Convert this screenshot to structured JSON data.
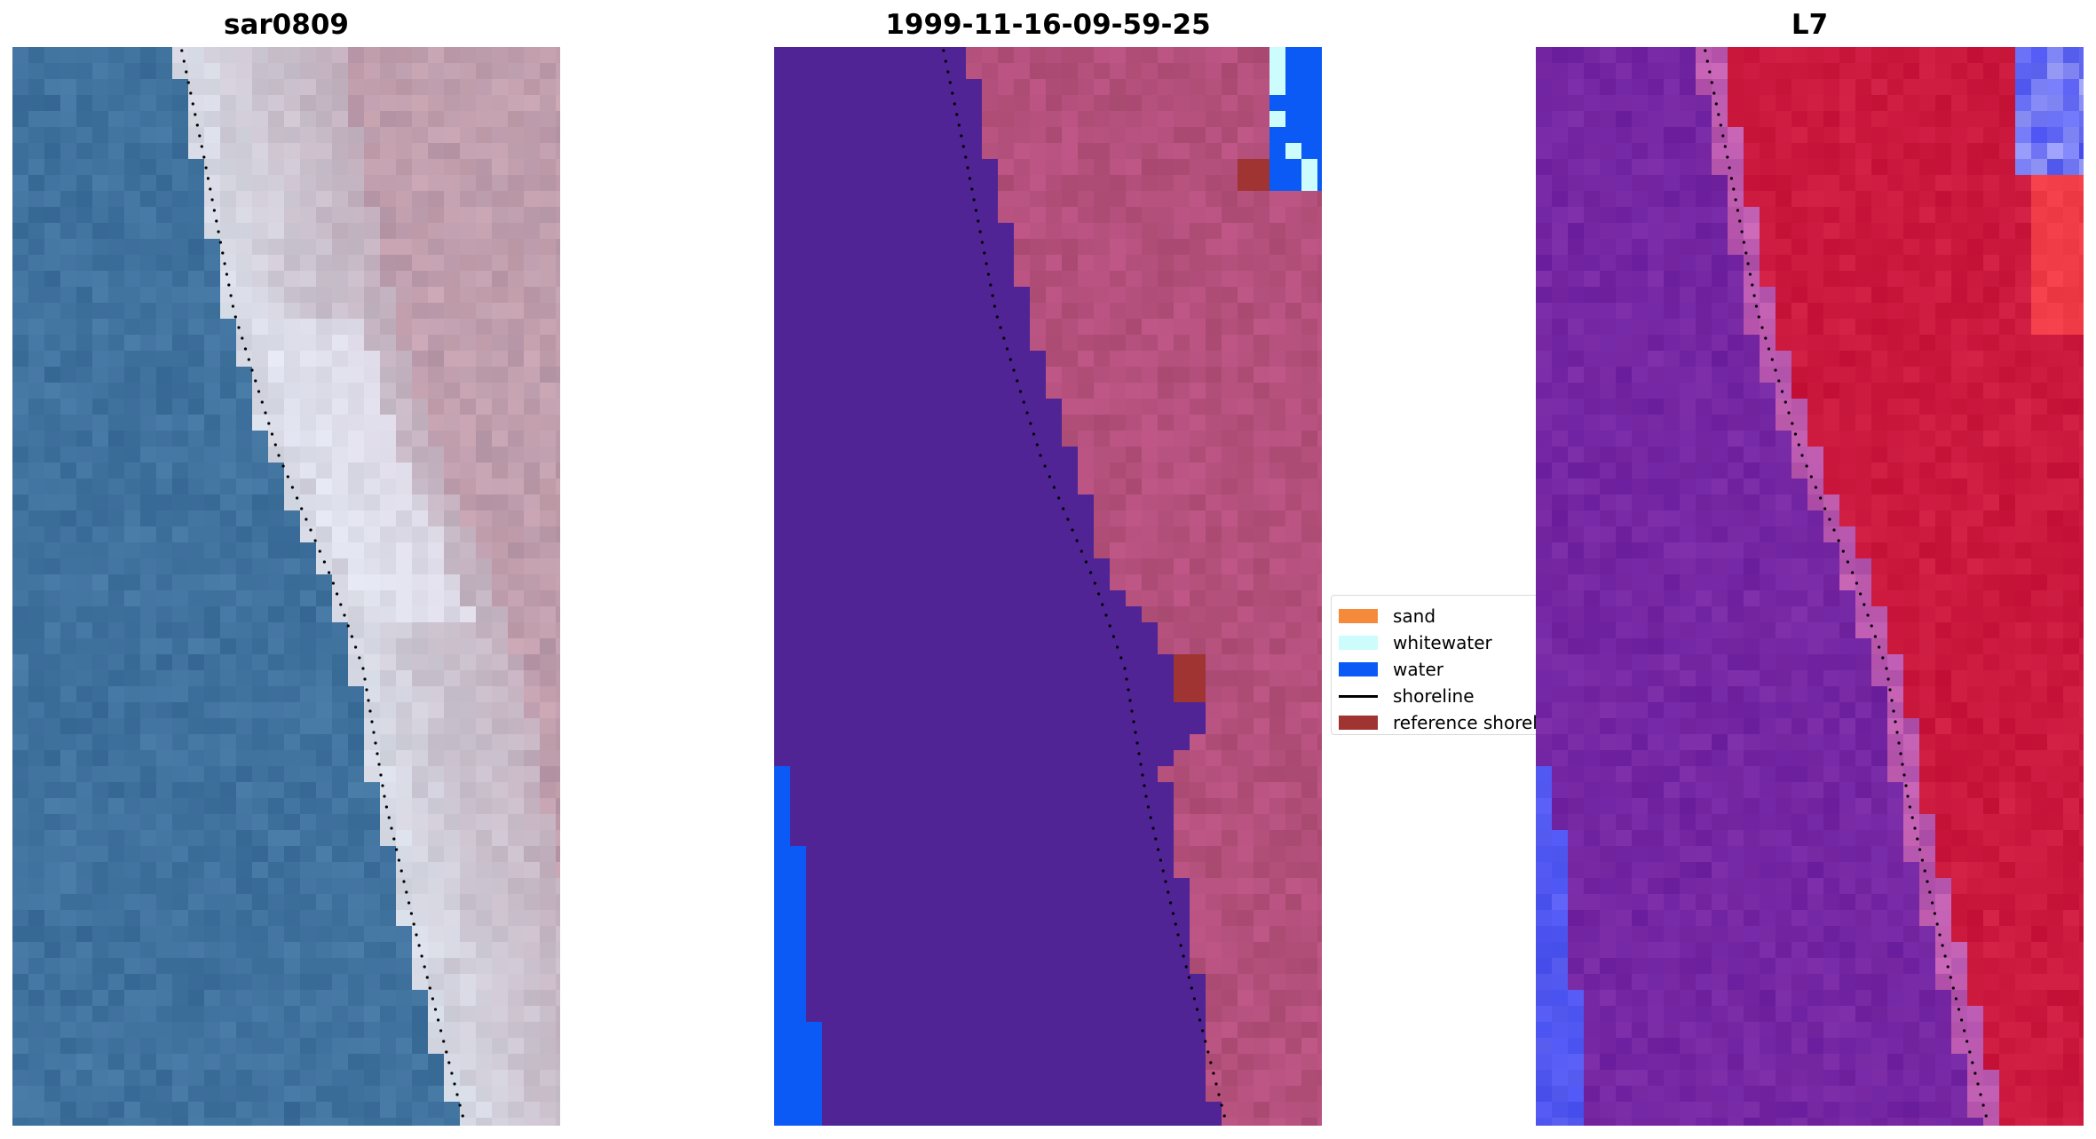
{
  "panels": [
    {
      "title": "sar0809",
      "kind": "rgb"
    },
    {
      "title": "1999-11-16-09-59-25",
      "kind": "classified"
    },
    {
      "title": "L7",
      "kind": "index"
    }
  ],
  "legend": {
    "items": [
      {
        "label": "sand",
        "type": "patch",
        "color": "#f58b3a"
      },
      {
        "label": "whitewater",
        "type": "patch",
        "color": "#ccfcfc"
      },
      {
        "label": "water",
        "type": "patch",
        "color": "#0b5af5"
      },
      {
        "label": "shoreline",
        "type": "line",
        "color": "#000000"
      },
      {
        "label": "reference shoreline",
        "type": "patch",
        "color": "#a03432"
      }
    ]
  },
  "colors": {
    "sea_rgb": "#3e6f9c",
    "beach_rgb": "#d8dde8",
    "land_rgb": "#b99aaa",
    "class_background": "#502495",
    "class_land": "#b4507c",
    "water": "#0b5af5",
    "whitewater": "#ccfcfc",
    "reference": "#a03432",
    "index_low": "#7a2aa4",
    "index_high": "#c8143a",
    "index_blue": "#4a52f0"
  }
}
